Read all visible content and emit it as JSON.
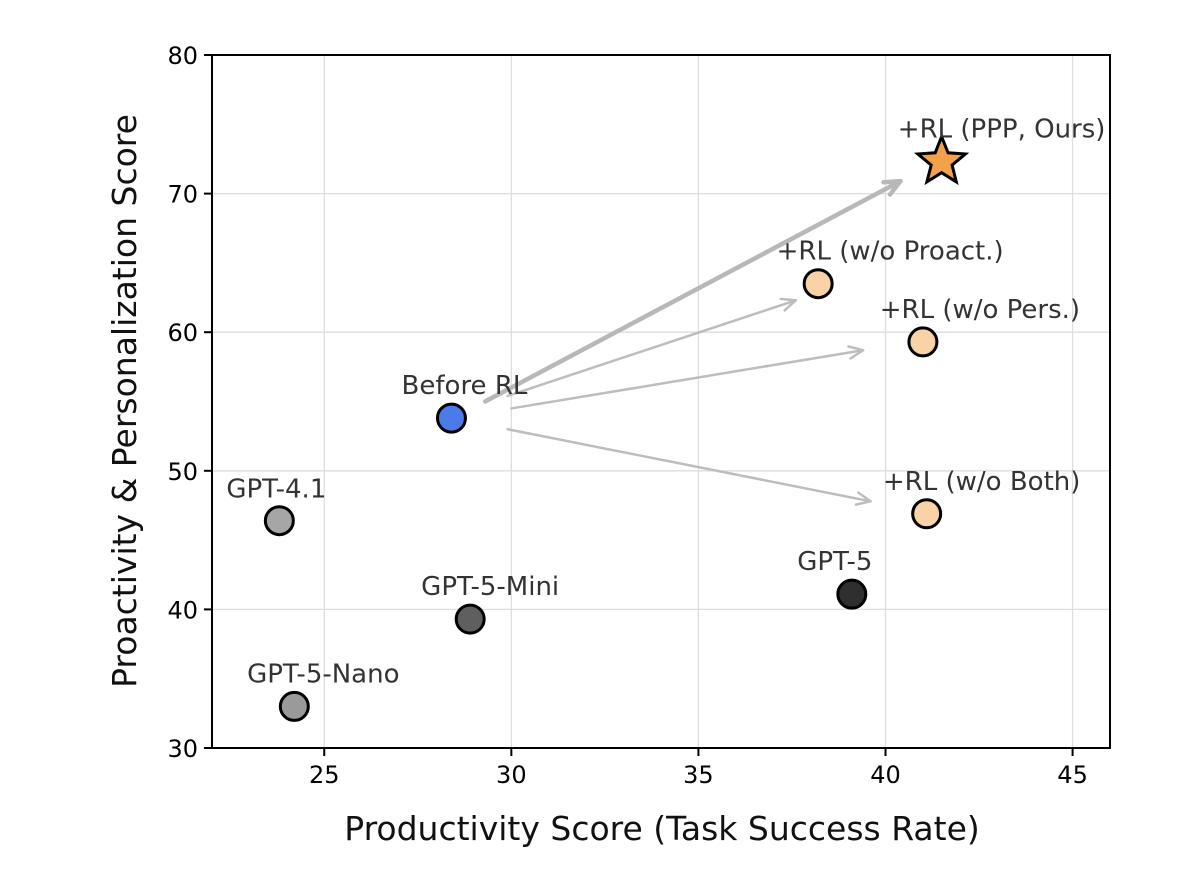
{
  "chart_data": {
    "type": "scatter",
    "title": "",
    "xlabel": "Productivity Score (Task Success Rate)",
    "ylabel": "Proactivity & Personalization Score",
    "xlim": [
      22,
      46
    ],
    "ylim": [
      30,
      80
    ],
    "xticks": [
      25,
      30,
      35,
      40,
      45
    ],
    "yticks": [
      30,
      40,
      50,
      60,
      70,
      80
    ],
    "grid": true,
    "points": [
      {
        "label": "GPT-4.1",
        "x": 23.8,
        "y": 46.4,
        "marker": "circle",
        "color": "#a6a6a6"
      },
      {
        "label": "GPT-5-Mini",
        "x": 28.9,
        "y": 39.3,
        "marker": "circle",
        "color": "#5f5f5f"
      },
      {
        "label": "GPT-5-Nano",
        "x": 24.2,
        "y": 33.0,
        "marker": "circle",
        "color": "#9a9a9a"
      },
      {
        "label": "GPT-5",
        "x": 39.1,
        "y": 41.1,
        "marker": "circle",
        "color": "#2f2f2f"
      },
      {
        "label": "Before RL",
        "x": 28.4,
        "y": 53.8,
        "marker": "circle",
        "color": "#4a7be8"
      },
      {
        "label": "+RL (w/o Proact.)",
        "x": 38.2,
        "y": 63.5,
        "marker": "circle",
        "color": "#f9d3a6"
      },
      {
        "label": "+RL (w/o Pers.)",
        "x": 41.0,
        "y": 59.3,
        "marker": "circle",
        "color": "#f9d3a6"
      },
      {
        "label": "+RL (w/o Both)",
        "x": 41.1,
        "y": 46.9,
        "marker": "circle",
        "color": "#f9d3a6"
      },
      {
        "label": "+RL (PPP, Ours)",
        "x": 41.5,
        "y": 72.3,
        "marker": "star",
        "color": "#f4a24a"
      }
    ],
    "arrows": [
      {
        "from": [
          29.3,
          55.0
        ],
        "to": [
          40.4,
          70.9
        ],
        "emphasis": true
      },
      {
        "from": [
          29.9,
          55.4
        ],
        "to": [
          37.6,
          62.3
        ],
        "emphasis": false
      },
      {
        "from": [
          30.0,
          54.5
        ],
        "to": [
          39.4,
          58.7
        ],
        "emphasis": false
      },
      {
        "from": [
          29.9,
          53.0
        ],
        "to": [
          39.6,
          47.8
        ],
        "emphasis": false
      }
    ]
  }
}
